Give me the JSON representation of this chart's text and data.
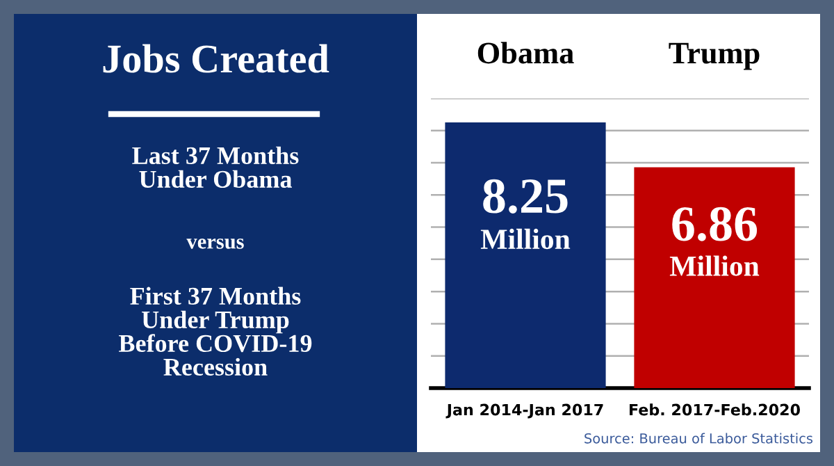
{
  "chart_data": {
    "type": "bar",
    "title": "Jobs Created",
    "categories": [
      "Jan 2014-Jan 2017",
      "Feb. 2017-Feb.2020"
    ],
    "values": [
      8.25,
      6.86
    ],
    "colors": [
      "#0d2a6e",
      "#c00000"
    ],
    "value_labels": [
      "8.25\nMillion",
      "6.86\nMillion"
    ],
    "ylim": [
      0,
      9
    ],
    "yticks": [
      {
        "value": 1,
        "label": null
      },
      {
        "value": 2,
        "label": null
      },
      {
        "value": 3,
        "label": null
      },
      {
        "value": 4,
        "label": null
      },
      {
        "value": 5,
        "label": null
      },
      {
        "value": 6,
        "label": null
      },
      {
        "value": 7,
        "label": null
      },
      {
        "value": 8,
        "label": null
      },
      {
        "value": 9,
        "label": null
      }
    ],
    "grid": "y",
    "tick_labels": "x",
    "annotations": [
      "Obama",
      "Trump",
      "Last 37 Months\nUnder Obama",
      "versus",
      "First 37 Months\nUnder Trump\nBefore COVID-19\nRecession",
      "Source: Bureau of Labor Statistics"
    ]
  }
}
